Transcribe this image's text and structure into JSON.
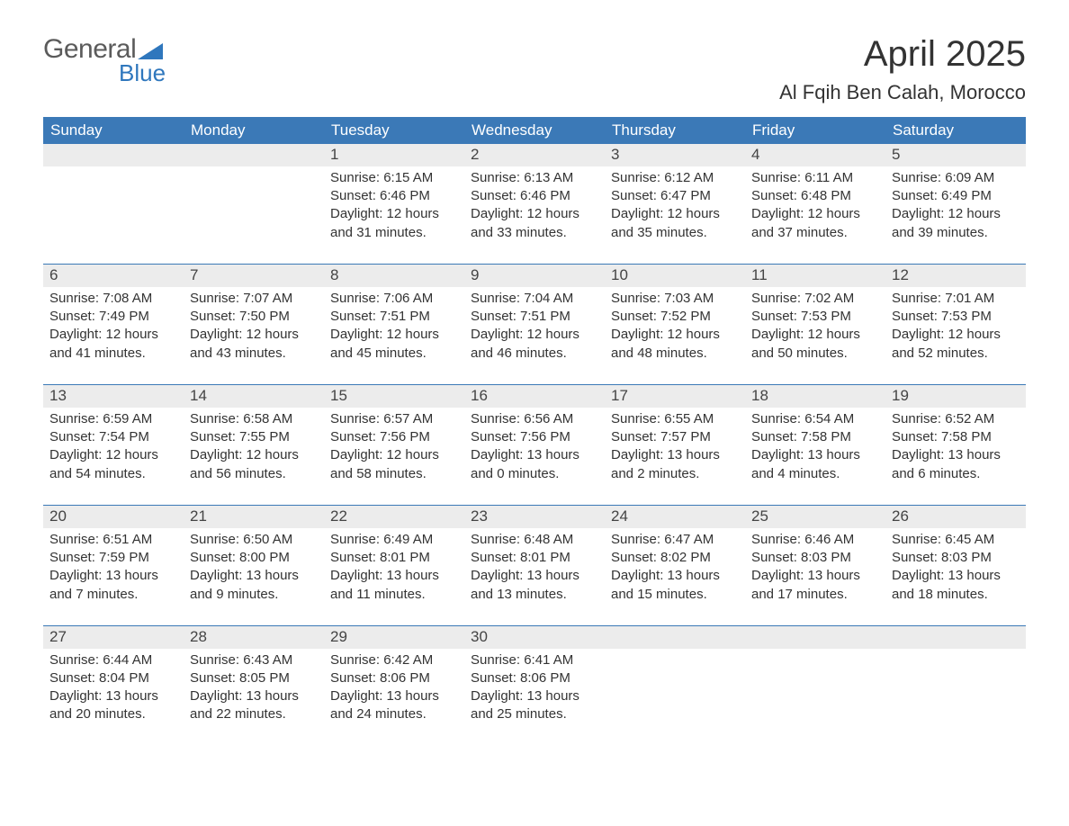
{
  "logo": {
    "word1": "General",
    "word2": "Blue"
  },
  "title": "April 2025",
  "location": "Al Fqih Ben Calah, Morocco",
  "colors": {
    "header_blue": "#3b79b7",
    "daynum_bg": "#ececec",
    "text": "#333333",
    "logo_gray": "#5b5b5b",
    "logo_blue": "#2f77bd",
    "background": "#ffffff"
  },
  "fonts": {
    "body_family": "Arial",
    "title_size_pt": 30,
    "location_size_pt": 17,
    "header_size_pt": 13,
    "cell_size_pt": 11
  },
  "day_headers": [
    "Sunday",
    "Monday",
    "Tuesday",
    "Wednesday",
    "Thursday",
    "Friday",
    "Saturday"
  ],
  "labels": {
    "sunrise": "Sunrise: ",
    "sunset": "Sunset: ",
    "daylight": "Daylight: "
  },
  "weeks": [
    [
      null,
      null,
      {
        "n": 1,
        "sunrise": "6:15 AM",
        "sunset": "6:46 PM",
        "daylight": "12 hours and 31 minutes."
      },
      {
        "n": 2,
        "sunrise": "6:13 AM",
        "sunset": "6:46 PM",
        "daylight": "12 hours and 33 minutes."
      },
      {
        "n": 3,
        "sunrise": "6:12 AM",
        "sunset": "6:47 PM",
        "daylight": "12 hours and 35 minutes."
      },
      {
        "n": 4,
        "sunrise": "6:11 AM",
        "sunset": "6:48 PM",
        "daylight": "12 hours and 37 minutes."
      },
      {
        "n": 5,
        "sunrise": "6:09 AM",
        "sunset": "6:49 PM",
        "daylight": "12 hours and 39 minutes."
      }
    ],
    [
      {
        "n": 6,
        "sunrise": "7:08 AM",
        "sunset": "7:49 PM",
        "daylight": "12 hours and 41 minutes."
      },
      {
        "n": 7,
        "sunrise": "7:07 AM",
        "sunset": "7:50 PM",
        "daylight": "12 hours and 43 minutes."
      },
      {
        "n": 8,
        "sunrise": "7:06 AM",
        "sunset": "7:51 PM",
        "daylight": "12 hours and 45 minutes."
      },
      {
        "n": 9,
        "sunrise": "7:04 AM",
        "sunset": "7:51 PM",
        "daylight": "12 hours and 46 minutes."
      },
      {
        "n": 10,
        "sunrise": "7:03 AM",
        "sunset": "7:52 PM",
        "daylight": "12 hours and 48 minutes."
      },
      {
        "n": 11,
        "sunrise": "7:02 AM",
        "sunset": "7:53 PM",
        "daylight": "12 hours and 50 minutes."
      },
      {
        "n": 12,
        "sunrise": "7:01 AM",
        "sunset": "7:53 PM",
        "daylight": "12 hours and 52 minutes."
      }
    ],
    [
      {
        "n": 13,
        "sunrise": "6:59 AM",
        "sunset": "7:54 PM",
        "daylight": "12 hours and 54 minutes."
      },
      {
        "n": 14,
        "sunrise": "6:58 AM",
        "sunset": "7:55 PM",
        "daylight": "12 hours and 56 minutes."
      },
      {
        "n": 15,
        "sunrise": "6:57 AM",
        "sunset": "7:56 PM",
        "daylight": "12 hours and 58 minutes."
      },
      {
        "n": 16,
        "sunrise": "6:56 AM",
        "sunset": "7:56 PM",
        "daylight": "13 hours and 0 minutes."
      },
      {
        "n": 17,
        "sunrise": "6:55 AM",
        "sunset": "7:57 PM",
        "daylight": "13 hours and 2 minutes."
      },
      {
        "n": 18,
        "sunrise": "6:54 AM",
        "sunset": "7:58 PM",
        "daylight": "13 hours and 4 minutes."
      },
      {
        "n": 19,
        "sunrise": "6:52 AM",
        "sunset": "7:58 PM",
        "daylight": "13 hours and 6 minutes."
      }
    ],
    [
      {
        "n": 20,
        "sunrise": "6:51 AM",
        "sunset": "7:59 PM",
        "daylight": "13 hours and 7 minutes."
      },
      {
        "n": 21,
        "sunrise": "6:50 AM",
        "sunset": "8:00 PM",
        "daylight": "13 hours and 9 minutes."
      },
      {
        "n": 22,
        "sunrise": "6:49 AM",
        "sunset": "8:01 PM",
        "daylight": "13 hours and 11 minutes."
      },
      {
        "n": 23,
        "sunrise": "6:48 AM",
        "sunset": "8:01 PM",
        "daylight": "13 hours and 13 minutes."
      },
      {
        "n": 24,
        "sunrise": "6:47 AM",
        "sunset": "8:02 PM",
        "daylight": "13 hours and 15 minutes."
      },
      {
        "n": 25,
        "sunrise": "6:46 AM",
        "sunset": "8:03 PM",
        "daylight": "13 hours and 17 minutes."
      },
      {
        "n": 26,
        "sunrise": "6:45 AM",
        "sunset": "8:03 PM",
        "daylight": "13 hours and 18 minutes."
      }
    ],
    [
      {
        "n": 27,
        "sunrise": "6:44 AM",
        "sunset": "8:04 PM",
        "daylight": "13 hours and 20 minutes."
      },
      {
        "n": 28,
        "sunrise": "6:43 AM",
        "sunset": "8:05 PM",
        "daylight": "13 hours and 22 minutes."
      },
      {
        "n": 29,
        "sunrise": "6:42 AM",
        "sunset": "8:06 PM",
        "daylight": "13 hours and 24 minutes."
      },
      {
        "n": 30,
        "sunrise": "6:41 AM",
        "sunset": "8:06 PM",
        "daylight": "13 hours and 25 minutes."
      },
      null,
      null,
      null
    ]
  ]
}
